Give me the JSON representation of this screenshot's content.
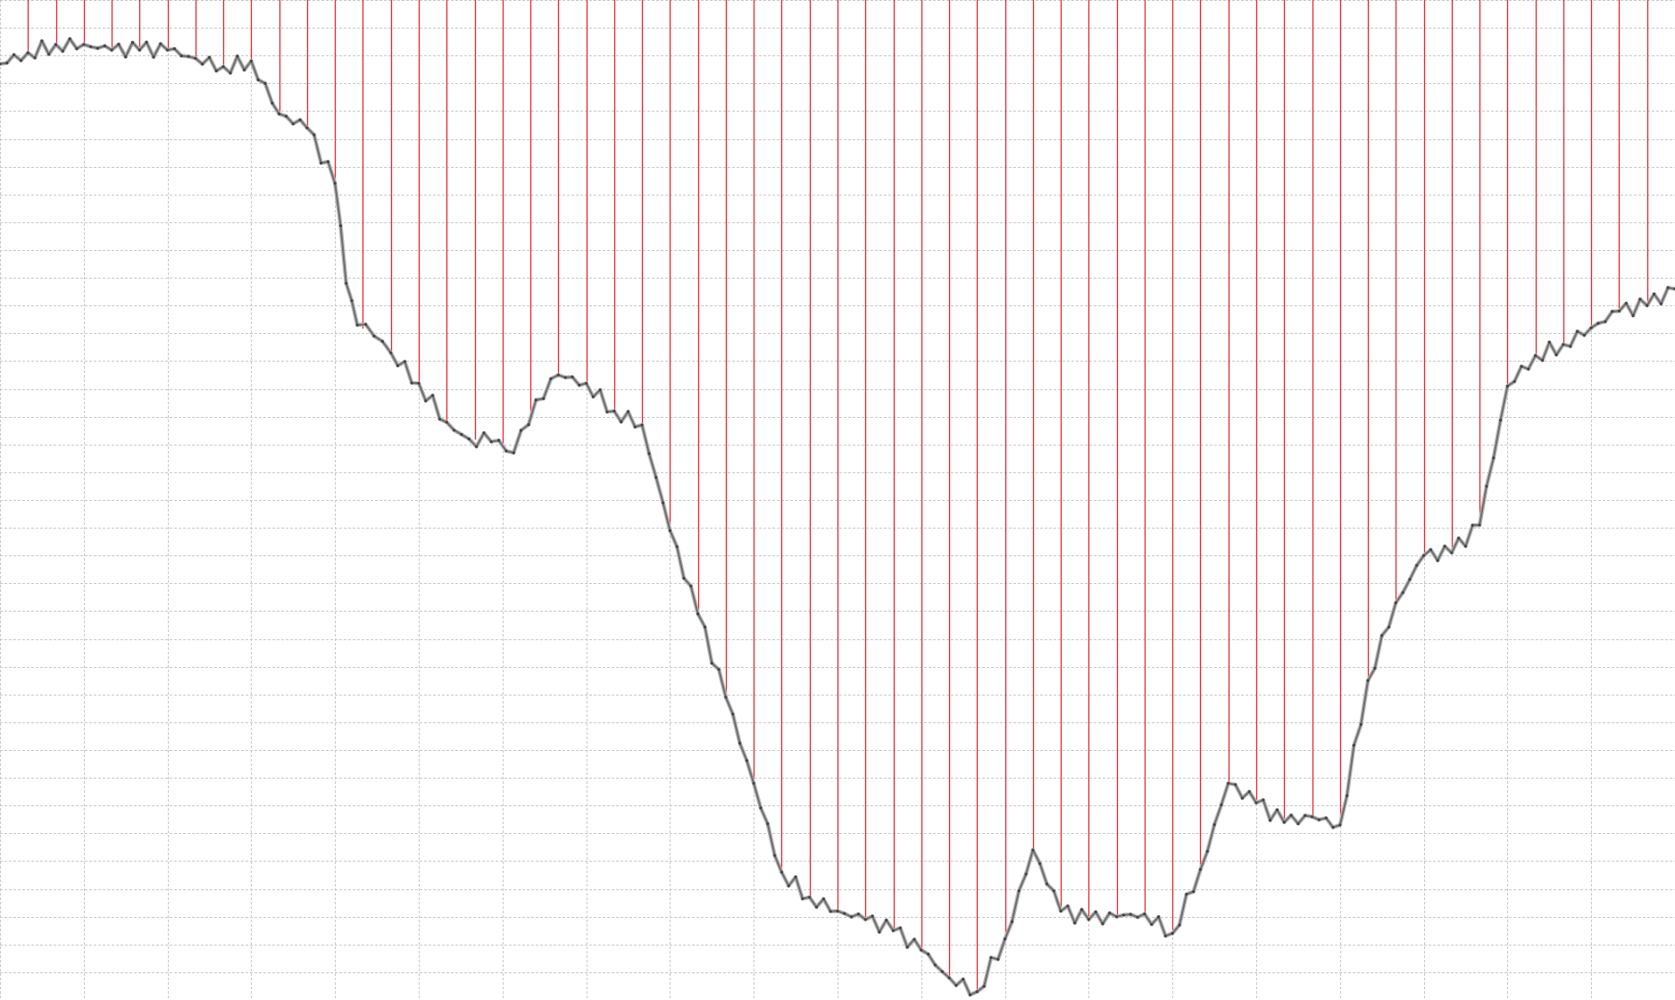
{
  "chart_data": {
    "type": "line",
    "title": "",
    "xlabel": "",
    "ylabel": "",
    "xlim": [
      0,
      300
    ],
    "ylim": [
      0,
      36
    ],
    "grid": true,
    "legend": "none",
    "colors": {
      "line": "#6e6e6e",
      "line_halo": "#b8b8b8",
      "point": "#444444",
      "drop_lines": "#e8262c",
      "grid": "#c8c8c8",
      "background": "#ffffff"
    },
    "series": [
      {
        "x": [
          0,
          5,
          10,
          15,
          20,
          25,
          30,
          35,
          40,
          45,
          50,
          55,
          60,
          62,
          64,
          67,
          70,
          75,
          80,
          84,
          88,
          92,
          96,
          100,
          105,
          110,
          115,
          120,
          125,
          130,
          135,
          140,
          145,
          150,
          155,
          160,
          165,
          170,
          175,
          180,
          185,
          190,
          195,
          200,
          205,
          210,
          215,
          220,
          225,
          230,
          235,
          240,
          245,
          250,
          255,
          260,
          265,
          270,
          275,
          280,
          285,
          290,
          295,
          300
        ],
        "y": [
          33.7,
          34.1,
          34.4,
          34.4,
          34.2,
          34.2,
          34.2,
          33.9,
          33.6,
          33.8,
          31.9,
          31.4,
          29.4,
          25.8,
          24.3,
          23.9,
          23.3,
          22.2,
          20.8,
          20.2,
          20.1,
          19.7,
          21.6,
          22.5,
          22.2,
          21.2,
          20.7,
          16.9,
          13.9,
          10.9,
          7.8,
          4.6,
          3.7,
          3.2,
          2.9,
          2.5,
          1.8,
          0.8,
          0.3,
          2.2,
          5.4,
          3.2,
          2.9,
          3.0,
          3.1,
          2.4,
          4.7,
          7.8,
          7.1,
          6.4,
          6.6,
          6.3,
          11.5,
          14.3,
          16.0,
          16.1,
          17.1,
          22.1,
          23.2,
          23.6,
          24.2,
          24.8,
          25.0,
          25.6
        ]
      }
    ]
  }
}
